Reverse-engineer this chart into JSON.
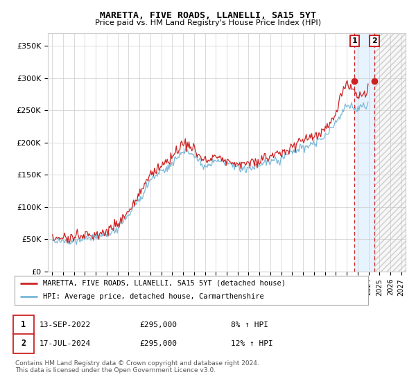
{
  "title": "MARETTA, FIVE ROADS, LLANELLI, SA15 5YT",
  "subtitle": "Price paid vs. HM Land Registry's House Price Index (HPI)",
  "ylim": [
    0,
    370000
  ],
  "hpi_color": "#7ab8d9",
  "price_color": "#cc2222",
  "vline_color": "#cc2222",
  "shade_color": "#ddeeff",
  "hatch_color": "#bbbbbb",
  "background_color": "#ffffff",
  "grid_color": "#cccccc",
  "legend_line1": "MARETTA, FIVE ROADS, LLANELLI, SA15 5YT (detached house)",
  "legend_line2": "HPI: Average price, detached house, Carmarthenshire",
  "t1_num": "1",
  "t1_date": "13-SEP-2022",
  "t1_price": "£295,000",
  "t1_pct": "8% ↑ HPI",
  "t1_year": 2022.708,
  "t2_num": "2",
  "t2_date": "17-JUL-2024",
  "t2_price": "£295,000",
  "t2_pct": "12% ↑ HPI",
  "t2_year": 2024.542,
  "footer": "Contains HM Land Registry data © Crown copyright and database right 2024.\nThis data is licensed under the Open Government Licence v3.0.",
  "xmin": 1994.6,
  "xmax": 2027.4,
  "data_end_year": 2025.0
}
